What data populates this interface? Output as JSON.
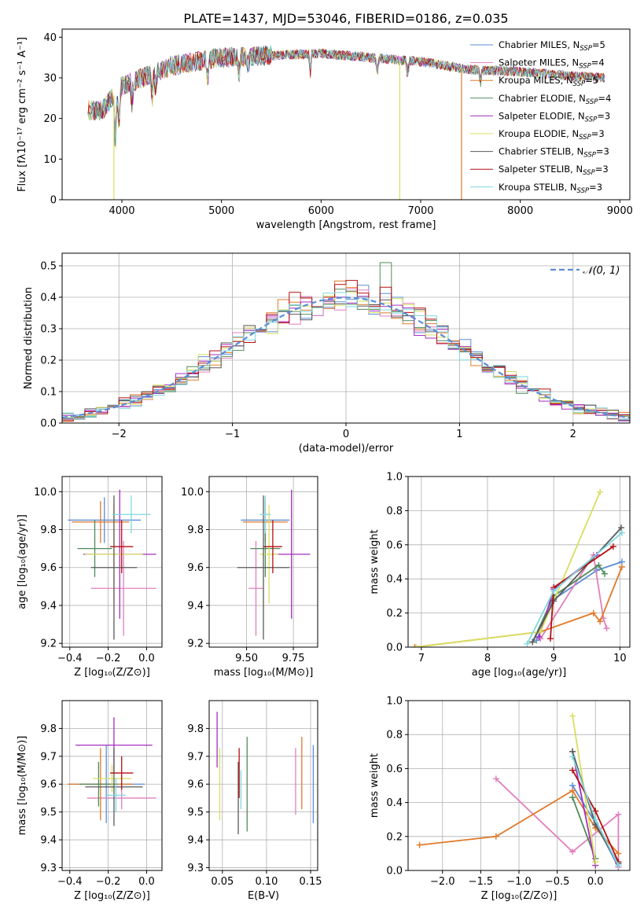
{
  "figure_title": "PLATE=1437, MJD=53046, FIBERID=0186, z=0.035",
  "colors": {
    "Chabrier MILES": "#5b8dd6",
    "Salpeter MILES": "#e17fbd",
    "Kroupa MILES": "#e07a2a",
    "Chabrier ELODIE": "#4f8a5b",
    "Salpeter ELODIE": "#a52ec0",
    "Kroupa ELODIE": "#d7df5e",
    "Chabrier STELIB": "#5a5a5a",
    "Salpeter STELIB": "#b50f12",
    "Kroupa STELIB": "#7fd7df"
  },
  "legend_models": [
    {
      "label": "Chabrier MILES",
      "n": "5"
    },
    {
      "label": "Salpeter MILES",
      "n": "4"
    },
    {
      "label": "Kroupa MILES",
      "n": "5"
    },
    {
      "label": "Chabrier ELODIE",
      "n": "4"
    },
    {
      "label": "Salpeter ELODIE",
      "n": "3"
    },
    {
      "label": "Kroupa ELODIE",
      "n": "3"
    },
    {
      "label": "Chabrier STELIB",
      "n": "3"
    },
    {
      "label": "Salpeter STELIB",
      "n": "3"
    },
    {
      "label": "Kroupa STELIB",
      "n": "3"
    }
  ],
  "chart_data": [
    {
      "id": "spectrum",
      "type": "line",
      "xlabel": "wavelength [Angstrom, rest frame]",
      "ylabel": "Flux [fλ10⁻¹⁷ erg cm⁻² s⁻¹ A⁻¹]",
      "xlim": [
        3400,
        9100
      ],
      "ylim": [
        0,
        42
      ],
      "xticks": [
        "4000",
        "5000",
        "6000",
        "7000",
        "8000",
        "9000"
      ],
      "yticks": [
        "0",
        "10",
        "20",
        "30",
        "40"
      ],
      "grid": false,
      "legend": "top-right",
      "continuum_anchors": [
        [
          3660,
          22
        ],
        [
          3800,
          22
        ],
        [
          3900,
          25
        ],
        [
          4000,
          28
        ],
        [
          4300,
          31
        ],
        [
          4500,
          33
        ],
        [
          5000,
          35
        ],
        [
          5500,
          35.5
        ],
        [
          6000,
          36
        ],
        [
          6500,
          35
        ],
        [
          7000,
          34
        ],
        [
          7500,
          32
        ],
        [
          8000,
          31.5
        ],
        [
          8500,
          30.5
        ],
        [
          8850,
          30
        ]
      ]
    },
    {
      "id": "residuals",
      "type": "histogram",
      "xlabel": "(data-model)/error",
      "ylabel": "Normed distribution",
      "xlim": [
        -2.5,
        2.5
      ],
      "ylim": [
        0,
        0.54
      ],
      "xticks": [
        "−2",
        "−1",
        "0",
        "1",
        "2"
      ],
      "yticks": [
        "0.0",
        "0.1",
        "0.2",
        "0.3",
        "0.4",
        "0.5"
      ],
      "grid": true,
      "legend": "top-right",
      "reference_curve": {
        "label": "𝒩(0, 1)",
        "mu": 0,
        "sigma": 1
      },
      "bin_width": 0.1,
      "notable_peaks": [
        {
          "x": 0.35,
          "y": 0.51
        },
        {
          "x": -0.15,
          "y": 0.47
        },
        {
          "x": 0.15,
          "y": 0.47
        }
      ]
    },
    {
      "id": "Z_vs_age",
      "type": "errorbar",
      "xlabel": "Z [log₁₀(Z/Z⊙)]",
      "ylabel": "age  [log₁₀(age/yr)]",
      "xlim": [
        -0.44,
        0.08
      ],
      "ylim": [
        9.18,
        10.08
      ],
      "xticks": [
        "−0.4",
        "−0.2",
        "0.0"
      ],
      "yticks": [
        "9.2",
        "9.4",
        "9.6",
        "9.8",
        "10.0"
      ],
      "grid": true,
      "points": [
        {
          "model": "Chabrier MILES",
          "x": -0.22,
          "xerr": 0.19,
          "y": 9.85,
          "yerr": 0.12
        },
        {
          "model": "Salpeter MILES",
          "x": -0.12,
          "xerr": 0.17,
          "y": 9.49,
          "yerr": 0.25
        },
        {
          "model": "Kroupa MILES",
          "x": -0.24,
          "xerr": 0.15,
          "y": 9.84,
          "yerr": 0.11
        },
        {
          "model": "Chabrier ELODIE",
          "x": -0.27,
          "xerr": 0.09,
          "y": 9.7,
          "yerr": 0.15
        },
        {
          "model": "Salpeter ELODIE",
          "x": -0.14,
          "xerr": 0.19,
          "y": 9.67,
          "yerr": 0.34
        },
        {
          "model": "Kroupa ELODIE",
          "x": -0.17,
          "xerr": 0.15,
          "y": 9.67,
          "yerr": 0.26
        },
        {
          "model": "Chabrier STELIB",
          "x": -0.17,
          "xerr": 0.12,
          "y": 9.6,
          "yerr": 0.38
        },
        {
          "model": "Salpeter STELIB",
          "x": -0.13,
          "xerr": 0.06,
          "y": 9.71,
          "yerr": 0.14
        },
        {
          "model": "Kroupa STELIB",
          "x": -0.08,
          "xerr": 0.1,
          "y": 9.88,
          "yerr": 0.1
        }
      ]
    },
    {
      "id": "mass_vs_age",
      "type": "errorbar",
      "xlabel": "mass [log₁₀(M/M⊙)]",
      "ylabel": "",
      "xlim": [
        9.3,
        9.88
      ],
      "ylim": [
        9.18,
        10.08
      ],
      "xticks": [
        "9.50",
        "9.75"
      ],
      "yticks": [
        "9.2",
        "9.4",
        "9.6",
        "9.8",
        "10.0"
      ],
      "grid": true,
      "points": [
        {
          "model": "Chabrier MILES",
          "x": 9.6,
          "xerr": 0.13,
          "y": 9.85,
          "yerr": 0.12
        },
        {
          "model": "Salpeter MILES",
          "x": 9.55,
          "xerr": 0.04,
          "y": 9.49,
          "yerr": 0.25
        },
        {
          "model": "Kroupa MILES",
          "x": 9.6,
          "xerr": 0.12,
          "y": 9.84,
          "yerr": 0.11
        },
        {
          "model": "Chabrier ELODIE",
          "x": 9.6,
          "xerr": 0.08,
          "y": 9.7,
          "yerr": 0.15
        },
        {
          "model": "Salpeter ELODIE",
          "x": 9.74,
          "xerr": 0.1,
          "y": 9.67,
          "yerr": 0.34
        },
        {
          "model": "Kroupa ELODIE",
          "x": 9.62,
          "xerr": 0.05,
          "y": 9.67,
          "yerr": 0.26
        },
        {
          "model": "Chabrier STELIB",
          "x": 9.59,
          "xerr": 0.14,
          "y": 9.6,
          "yerr": 0.38
        },
        {
          "model": "Salpeter STELIB",
          "x": 9.64,
          "xerr": 0.05,
          "y": 9.71,
          "yerr": 0.14
        },
        {
          "model": "Kroupa STELIB",
          "x": 9.6,
          "xerr": 0.03,
          "y": 9.88,
          "yerr": 0.1
        }
      ]
    },
    {
      "id": "age_mass_weight",
      "type": "line",
      "xlabel": "age  [log₁₀(age/yr)]",
      "ylabel": "mass weight",
      "xlim": [
        6.8,
        10.15
      ],
      "ylim": [
        0,
        1.0
      ],
      "xticks": [
        "7",
        "8",
        "9",
        "10"
      ],
      "yticks": [
        "0.0",
        "0.2",
        "0.4",
        "0.6",
        "0.8",
        "1.0"
      ],
      "grid": true,
      "series": [
        {
          "model": "Chabrier MILES",
          "x": [
            8.74,
            9.0,
            9.65,
            10.03
          ],
          "y": [
            0.04,
            0.28,
            0.45,
            0.5
          ]
        },
        {
          "model": "Salpeter MILES",
          "x": [
            8.8,
            9.6,
            9.75,
            9.8
          ],
          "y": [
            0.05,
            0.54,
            0.17,
            0.11
          ]
        },
        {
          "model": "Kroupa MILES",
          "x": [
            6.9,
            8.8,
            9.6,
            9.7,
            10.03
          ],
          "y": [
            0.0,
            0.09,
            0.2,
            0.15,
            0.47
          ]
        },
        {
          "model": "Chabrier ELODIE",
          "x": [
            8.68,
            9.0,
            9.68,
            9.77
          ],
          "y": [
            0.03,
            0.3,
            0.48,
            0.43
          ]
        },
        {
          "model": "Salpeter ELODIE",
          "x": [
            8.78,
            9.0,
            9.65
          ],
          "y": [
            0.06,
            0.34,
            0.54
          ]
        },
        {
          "model": "Kroupa ELODIE",
          "x": [
            6.92,
            8.8,
            9.7
          ],
          "y": [
            0.0,
            0.09,
            0.91
          ]
        },
        {
          "model": "Chabrier STELIB",
          "x": [
            8.68,
            9.0,
            10.02
          ],
          "y": [
            0.03,
            0.27,
            0.7
          ]
        },
        {
          "model": "Salpeter STELIB",
          "x": [
            8.95,
            9.0,
            9.9
          ],
          "y": [
            0.05,
            0.35,
            0.59
          ]
        },
        {
          "model": "Kroupa STELIB",
          "x": [
            8.6,
            9.0,
            10.03
          ],
          "y": [
            0.02,
            0.33,
            0.67
          ]
        }
      ]
    },
    {
      "id": "Z_vs_mass",
      "type": "errorbar",
      "xlabel": "Z [log₁₀(Z/Z⊙)]",
      "ylabel": "mass [log₁₀(M/M⊙)]",
      "xlim": [
        -0.44,
        0.08
      ],
      "ylim": [
        9.29,
        9.9
      ],
      "xticks": [
        "−0.4",
        "−0.2",
        "0.0"
      ],
      "yticks": [
        "9.3",
        "9.4",
        "9.5",
        "9.6",
        "9.7",
        "9.8"
      ],
      "grid": true,
      "points": [
        {
          "model": "Chabrier MILES",
          "x": -0.21,
          "xerr": 0.2,
          "y": 9.6,
          "yerr": 0.14
        },
        {
          "model": "Salpeter MILES",
          "x": -0.13,
          "xerr": 0.18,
          "y": 9.55,
          "yerr": 0.04
        },
        {
          "model": "Kroupa MILES",
          "x": -0.24,
          "xerr": 0.17,
          "y": 9.6,
          "yerr": 0.13
        },
        {
          "model": "Chabrier ELODIE",
          "x": -0.25,
          "xerr": 0.1,
          "y": 9.6,
          "yerr": 0.08
        },
        {
          "model": "Salpeter ELODIE",
          "x": -0.17,
          "xerr": 0.2,
          "y": 9.74,
          "yerr": 0.1
        },
        {
          "model": "Kroupa ELODIE",
          "x": -0.18,
          "xerr": 0.1,
          "y": 9.62,
          "yerr": 0.05
        },
        {
          "model": "Chabrier STELIB",
          "x": -0.17,
          "xerr": 0.15,
          "y": 9.59,
          "yerr": 0.14
        },
        {
          "model": "Salpeter STELIB",
          "x": -0.13,
          "xerr": 0.06,
          "y": 9.64,
          "yerr": 0.06
        },
        {
          "model": "Kroupa STELIB",
          "x": -0.16,
          "xerr": 0.05,
          "y": 9.56,
          "yerr": 0.06
        }
      ]
    },
    {
      "id": "ebv_vs_mass",
      "type": "errorbar",
      "xlabel": "E(B-V)",
      "ylabel": "",
      "xlim": [
        0.035,
        0.158
      ],
      "ylim": [
        9.29,
        9.9
      ],
      "xticks": [
        "0.05",
        "0.10",
        "0.15"
      ],
      "yticks": [
        "9.3",
        "9.4",
        "9.5",
        "9.6",
        "9.7",
        "9.8"
      ],
      "grid": true,
      "points": [
        {
          "model": "Chabrier MILES",
          "x": 0.153,
          "y": 9.6,
          "yerr": 0.14
        },
        {
          "model": "Salpeter MILES",
          "x": 0.133,
          "y": 9.61,
          "yerr": 0.12
        },
        {
          "model": "Kroupa MILES",
          "x": 0.14,
          "y": 9.64,
          "yerr": 0.13
        },
        {
          "model": "Chabrier ELODIE",
          "x": 0.078,
          "y": 9.6,
          "yerr": 0.17
        },
        {
          "model": "Salpeter ELODIE",
          "x": 0.044,
          "y": 9.76,
          "yerr": 0.1
        },
        {
          "model": "Kroupa ELODIE",
          "x": 0.047,
          "y": 9.6,
          "yerr": 0.13
        },
        {
          "model": "Chabrier STELIB",
          "x": 0.068,
          "y": 9.55,
          "yerr": 0.13
        },
        {
          "model": "Salpeter STELIB",
          "x": 0.069,
          "y": 9.64,
          "yerr": 0.09
        },
        {
          "model": "Kroupa STELIB",
          "x": 0.071,
          "y": 9.58,
          "yerr": 0.07
        }
      ]
    },
    {
      "id": "Z_mass_weight",
      "type": "line",
      "xlabel": "Z [log₁₀(Z/Z⊙)]",
      "ylabel": "mass weight",
      "xlim": [
        -2.45,
        0.45
      ],
      "ylim": [
        0,
        1.0
      ],
      "xticks": [
        "−2.0",
        "−1.5",
        "−1.0",
        "−0.5",
        "0.0"
      ],
      "yticks": [
        "0.0",
        "0.2",
        "0.4",
        "0.6",
        "0.8",
        "1.0"
      ],
      "grid": true,
      "series": [
        {
          "model": "Chabrier MILES",
          "x": [
            -0.3,
            0.0,
            0.3
          ],
          "y": [
            0.5,
            0.28,
            0.02
          ]
        },
        {
          "model": "Salpeter MILES",
          "x": [
            -1.3,
            -0.3,
            0.3,
            0.3
          ],
          "y": [
            0.54,
            0.11,
            0.33,
            0.02
          ]
        },
        {
          "model": "Kroupa MILES",
          "x": [
            -2.3,
            -1.3,
            -0.3,
            0.0,
            0.3
          ],
          "y": [
            0.15,
            0.2,
            0.47,
            0.25,
            0.1
          ]
        },
        {
          "model": "Chabrier ELODIE",
          "x": [
            -0.3,
            0.0
          ],
          "y": [
            0.43,
            0.07
          ]
        },
        {
          "model": "Salpeter ELODIE",
          "x": [
            -0.3,
            0.0
          ],
          "y": [
            0.7,
            0.03
          ]
        },
        {
          "model": "Kroupa ELODIE",
          "x": [
            -0.3,
            0.0
          ],
          "y": [
            0.91,
            0.05
          ]
        },
        {
          "model": "Chabrier STELIB",
          "x": [
            -0.3,
            0.0,
            0.3
          ],
          "y": [
            0.7,
            0.27,
            0.04
          ]
        },
        {
          "model": "Salpeter STELIB",
          "x": [
            -0.3,
            0.0,
            0.3
          ],
          "y": [
            0.59,
            0.35,
            0.05
          ]
        },
        {
          "model": "Kroupa STELIB",
          "x": [
            -0.3,
            0.0,
            0.3
          ],
          "y": [
            0.67,
            0.3,
            0.03
          ]
        }
      ]
    }
  ]
}
